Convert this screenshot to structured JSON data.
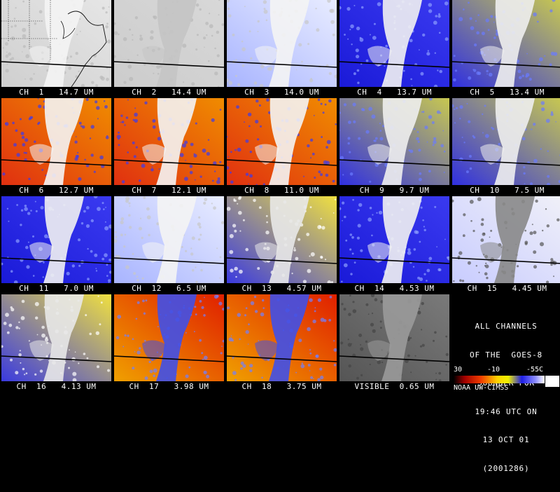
{
  "panels": [
    {
      "label": "CH  1   14.7 UM",
      "style": "gray-map"
    },
    {
      "label": "CH  2   14.4 UM",
      "style": "gray-flat"
    },
    {
      "label": "CH  3   14.0 UM",
      "style": "pale-blue"
    },
    {
      "label": "CH  4   13.7 UM",
      "style": "blue"
    },
    {
      "label": "CH  5   13.4 UM",
      "style": "olive-blue"
    },
    {
      "label": "CH  6   12.7 UM",
      "style": "warm"
    },
    {
      "label": "CH  7   12.1 UM",
      "style": "warm"
    },
    {
      "label": "CH  8   11.0 UM",
      "style": "warm"
    },
    {
      "label": "CH  9   9.7 UM",
      "style": "olive-blue"
    },
    {
      "label": "CH  10   7.5 UM",
      "style": "olive-blue"
    },
    {
      "label": "CH  11   7.0 UM",
      "style": "blue"
    },
    {
      "label": "CH  12   6.5 UM",
      "style": "pale-blue"
    },
    {
      "label": "CH  13   4.57 UM",
      "style": "yellow-blue"
    },
    {
      "label": "CH  14   4.53 UM",
      "style": "blue"
    },
    {
      "label": "CH  15   4.45 UM",
      "style": "noisy"
    },
    {
      "label": "CH  16   4.13 UM",
      "style": "yellow-blue"
    },
    {
      "label": "CH  17   3.98 UM",
      "style": "red"
    },
    {
      "label": "CH  18   3.75 UM",
      "style": "red"
    },
    {
      "label": "VISIBLE  0.65 UM",
      "style": "gray-vis"
    }
  ],
  "info": {
    "lines": [
      "ALL CHANNELS",
      "OF THE  GOES-8",
      "SOUNDER FOR",
      "19:46 UTC ON",
      "13 OCT 01",
      "(2001286)"
    ],
    "scale_labels": [
      "30",
      "-10",
      "-55C"
    ],
    "credit": "NOAA UW-CIMSS"
  },
  "colors": {
    "background": "#000000",
    "warm": [
      "#c81e0a",
      "#f05a0a",
      "#f5a000",
      "#f0e600"
    ],
    "cold": [
      "#2020e6",
      "#8ca0ff",
      "#ffffff"
    ]
  }
}
